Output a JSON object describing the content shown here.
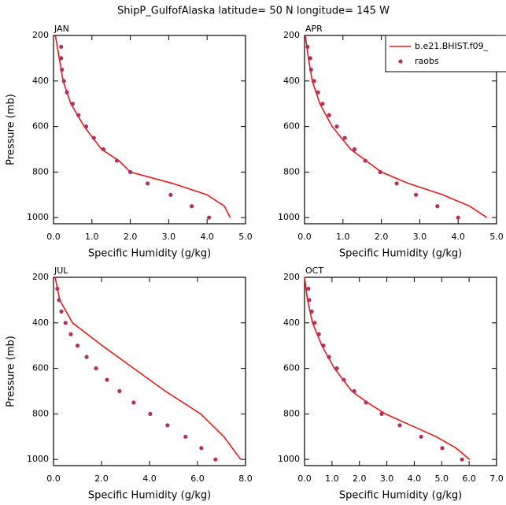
{
  "title": "ShipP_GulfofAlaska  latitude= 50 N longitude= 145 W",
  "chart_data": [
    {
      "type": "line",
      "panel_label": "JAN",
      "xlabel": "Specific Humidity (g/kg)",
      "ylabel": "Pressure (mb)",
      "xlim": [
        0,
        5
      ],
      "ylim": [
        200,
        1027
      ],
      "y_reversed": true,
      "xticks": [
        {
          "value": 0,
          "label": "0.0"
        },
        {
          "value": 1,
          "label": "1.0"
        },
        {
          "value": 2,
          "label": "2.0"
        },
        {
          "value": 3,
          "label": "3.0"
        },
        {
          "value": 4,
          "label": "4.0"
        },
        {
          "value": 5,
          "label": "5.0"
        }
      ],
      "yticks": [
        200,
        400,
        600,
        800,
        1000
      ],
      "series": [
        {
          "style": "line",
          "color": "#e41a1c",
          "y": [
            200,
            300,
            400,
            500,
            600,
            700,
            750,
            800,
            850,
            900,
            950,
            1000
          ],
          "values": [
            0.05,
            0.15,
            0.25,
            0.45,
            0.8,
            1.25,
            1.7,
            2.0,
            3.1,
            4.0,
            4.45,
            4.6
          ]
        },
        {
          "style": "markers",
          "color": "#b03060",
          "y": [
            250,
            300,
            350,
            400,
            450,
            500,
            550,
            600,
            650,
            700,
            750,
            800,
            850,
            900,
            950,
            1000
          ],
          "values": [
            0.2,
            0.2,
            0.22,
            0.27,
            0.35,
            0.5,
            0.65,
            0.85,
            1.05,
            1.3,
            1.65,
            2.0,
            2.45,
            3.05,
            3.6,
            4.05
          ]
        }
      ]
    },
    {
      "type": "line",
      "panel_label": "APR",
      "xlabel": "Specific Humidity (g/kg)",
      "xlim": [
        0,
        5
      ],
      "ylim": [
        200,
        1027
      ],
      "y_reversed": true,
      "xticks": [
        {
          "value": 0,
          "label": "0.0"
        },
        {
          "value": 1,
          "label": "1.0"
        },
        {
          "value": 2,
          "label": "2.0"
        },
        {
          "value": 3,
          "label": "3.0"
        },
        {
          "value": 4,
          "label": "4.0"
        },
        {
          "value": 5,
          "label": "5.0"
        }
      ],
      "yticks": [
        200,
        400,
        600,
        800,
        1000
      ],
      "legend": "upper right",
      "series": [
        {
          "name": "b.e21.BHIST.f09_",
          "style": "line",
          "color": "#e41a1c",
          "y": [
            200,
            300,
            400,
            500,
            600,
            700,
            800,
            850,
            900,
            950,
            1000
          ],
          "values": [
            0.02,
            0.1,
            0.2,
            0.4,
            0.72,
            1.2,
            2.0,
            2.7,
            3.6,
            4.3,
            4.75
          ]
        },
        {
          "name": "raobs",
          "style": "markers",
          "color": "#b03060",
          "y": [
            250,
            300,
            350,
            400,
            450,
            500,
            550,
            600,
            650,
            700,
            750,
            800,
            850,
            900,
            950,
            1000
          ],
          "values": [
            0.08,
            0.15,
            0.17,
            0.25,
            0.35,
            0.47,
            0.64,
            0.84,
            1.05,
            1.3,
            1.58,
            1.97,
            2.4,
            2.9,
            3.46,
            4.0
          ]
        }
      ]
    },
    {
      "type": "line",
      "panel_label": "JUL",
      "xlabel": "Specific Humidity (g/kg)",
      "ylabel": "Pressure (mb)",
      "xlim": [
        0,
        8
      ],
      "ylim": [
        200,
        1027
      ],
      "y_reversed": true,
      "xticks": [
        {
          "value": 0,
          "label": "0.0"
        },
        {
          "value": 2,
          "label": "2.0"
        },
        {
          "value": 4,
          "label": "4.0"
        },
        {
          "value": 6,
          "label": "6.0"
        },
        {
          "value": 8,
          "label": "8.0"
        }
      ],
      "yticks": [
        200,
        400,
        600,
        800,
        1000
      ],
      "series": [
        {
          "style": "line",
          "color": "#e41a1c",
          "y": [
            200,
            300,
            400,
            500,
            600,
            700,
            800,
            900,
            1000
          ],
          "values": [
            0.07,
            0.26,
            0.79,
            2.03,
            3.34,
            4.66,
            6.13,
            7.1,
            7.8
          ]
        },
        {
          "style": "markers",
          "color": "#b03060",
          "y": [
            250,
            300,
            350,
            400,
            450,
            500,
            550,
            600,
            650,
            700,
            750,
            800,
            850,
            900,
            950,
            1000
          ],
          "values": [
            0.16,
            0.23,
            0.33,
            0.5,
            0.72,
            1.0,
            1.38,
            1.77,
            2.23,
            2.75,
            3.34,
            4.03,
            4.75,
            5.5,
            6.16,
            6.75
          ]
        }
      ]
    },
    {
      "type": "line",
      "panel_label": "OCT",
      "xlabel": "Specific Humidity (g/kg)",
      "xlim": [
        0,
        7
      ],
      "ylim": [
        200,
        1027
      ],
      "y_reversed": true,
      "xticks": [
        {
          "value": 0,
          "label": "0.0"
        },
        {
          "value": 1,
          "label": "1.0"
        },
        {
          "value": 2,
          "label": "2.0"
        },
        {
          "value": 3,
          "label": "3.0"
        },
        {
          "value": 4,
          "label": "4.0"
        },
        {
          "value": 5,
          "label": "5.0"
        },
        {
          "value": 6,
          "label": "6.0"
        },
        {
          "value": 7,
          "label": "7.0"
        }
      ],
      "yticks": [
        200,
        400,
        600,
        800,
        1000
      ],
      "series": [
        {
          "style": "line",
          "color": "#e41a1c",
          "y": [
            200,
            300,
            400,
            500,
            600,
            700,
            750,
            800,
            850,
            900,
            950,
            1000
          ],
          "values": [
            0.0,
            0.11,
            0.29,
            0.63,
            1.09,
            1.72,
            2.29,
            2.95,
            3.87,
            4.8,
            5.52,
            6.02
          ]
        },
        {
          "style": "markers",
          "color": "#b03060",
          "y": [
            250,
            300,
            350,
            400,
            450,
            500,
            550,
            600,
            650,
            700,
            750,
            800,
            850,
            900,
            950,
            1000
          ],
          "values": [
            0.14,
            0.17,
            0.26,
            0.37,
            0.52,
            0.69,
            0.89,
            1.18,
            1.43,
            1.81,
            2.24,
            2.81,
            3.47,
            4.25,
            5.02,
            5.74
          ]
        }
      ]
    }
  ]
}
